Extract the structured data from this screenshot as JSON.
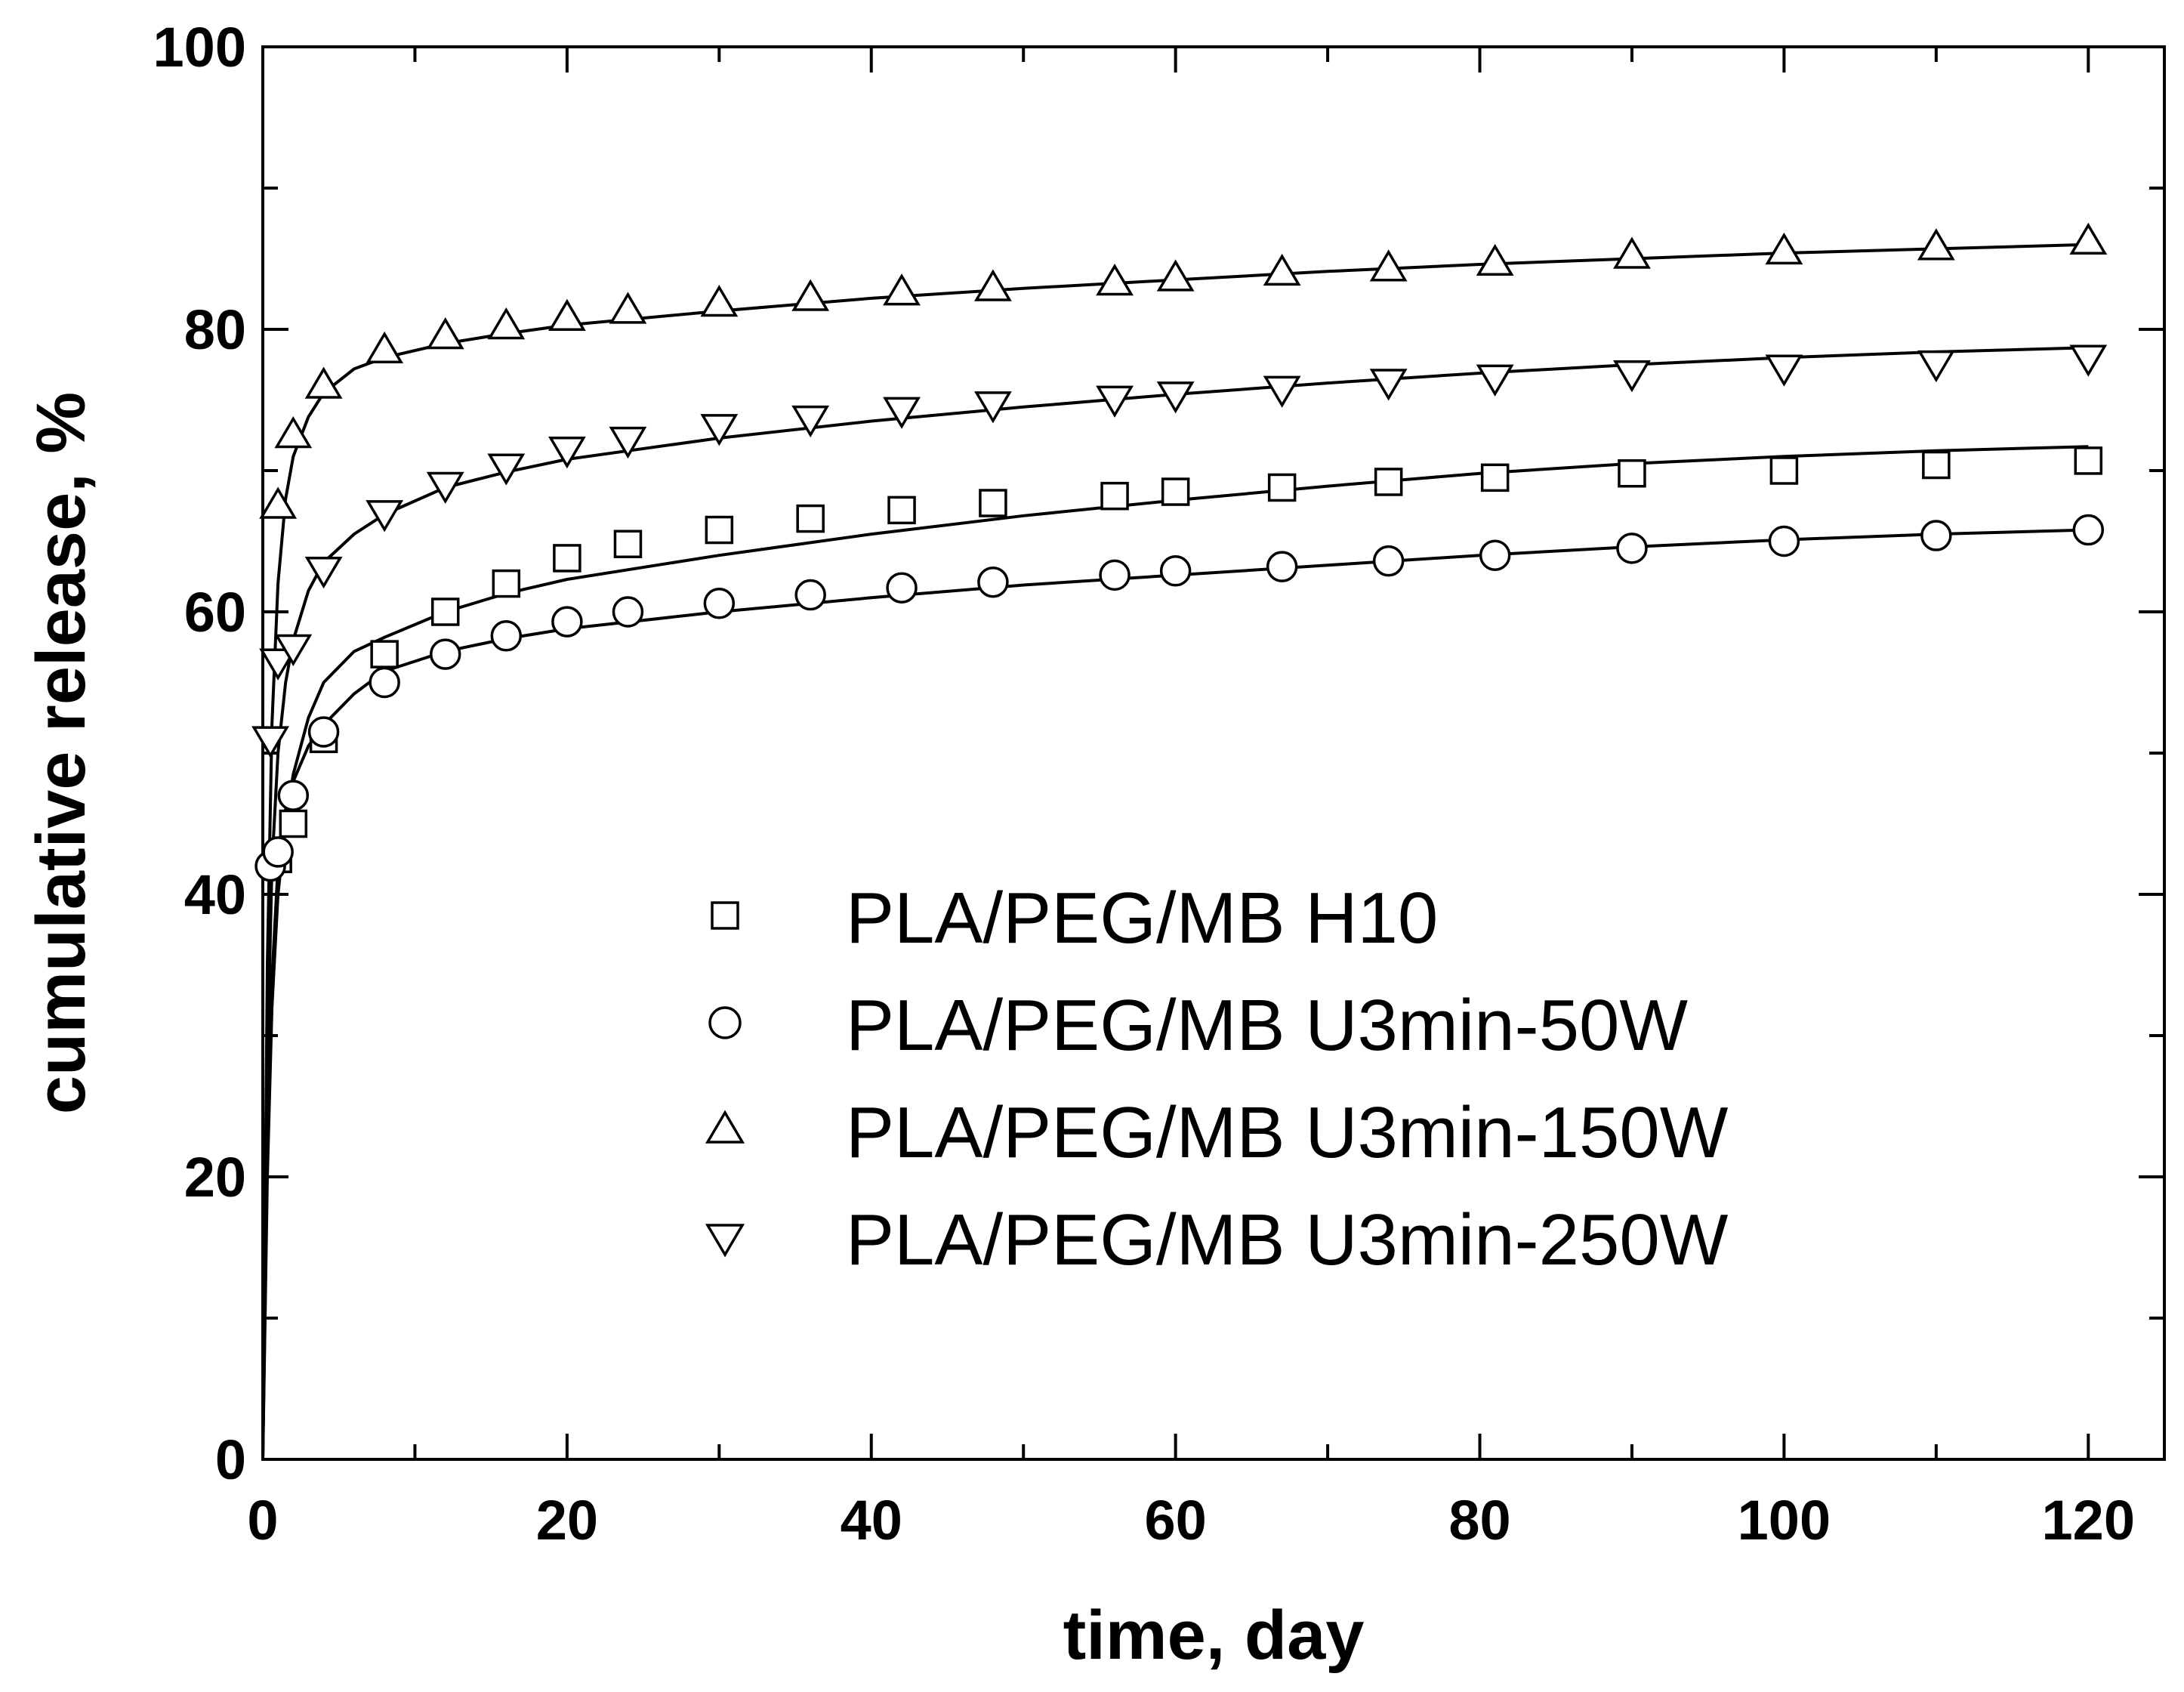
{
  "chart_data": {
    "type": "scatter",
    "title": "",
    "xlabel": "time, day",
    "ylabel": "cumulative release, %",
    "xlim": [
      0,
      125
    ],
    "ylim": [
      0,
      100
    ],
    "xticks": [
      0,
      20,
      40,
      60,
      80,
      100,
      120
    ],
    "yticks": [
      0,
      20,
      40,
      60,
      80,
      100
    ],
    "grid": false,
    "legend_position": "center",
    "series": [
      {
        "name": "PLA/PEG/MB H10",
        "marker": "square",
        "x": [
          1,
          2,
          4,
          8,
          12,
          16,
          20,
          24,
          30,
          36,
          42,
          48,
          56,
          60,
          67,
          74,
          81,
          90,
          100,
          110,
          120
        ],
        "y": [
          42.5,
          45,
          51,
          57,
          60,
          62,
          63.8,
          64.8,
          65.8,
          66.6,
          67.2,
          67.7,
          68.2,
          68.5,
          68.8,
          69.2,
          69.5,
          69.8,
          70,
          70.4,
          70.7
        ],
        "fit_x": [
          0,
          0.3,
          0.6,
          1,
          1.5,
          2,
          3,
          4,
          6,
          8,
          12,
          16,
          20,
          30,
          40,
          50,
          60,
          70,
          80,
          90,
          100,
          110,
          120
        ],
        "fit_y": [
          0,
          20,
          32,
          40,
          45,
          48.5,
          52.5,
          55,
          57.2,
          58.2,
          60,
          61.3,
          62.3,
          64,
          65.5,
          66.8,
          67.9,
          68.9,
          69.8,
          70.5,
          71,
          71.4,
          71.7
        ]
      },
      {
        "name": "PLA/PEG/MB U3min-50W",
        "marker": "circle",
        "x": [
          0.5,
          1,
          2,
          4,
          8,
          12,
          16,
          20,
          24,
          30,
          36,
          42,
          48,
          56,
          60,
          67,
          74,
          81,
          90,
          100,
          110,
          120
        ],
        "y": [
          42,
          43,
          47,
          51.5,
          55,
          57,
          58.3,
          59.3,
          60,
          60.6,
          61.2,
          61.7,
          62.1,
          62.6,
          62.9,
          63.2,
          63.6,
          64,
          64.5,
          65,
          65.4,
          65.8
        ],
        "fit_x": [
          0,
          0.3,
          0.6,
          1,
          1.5,
          2,
          3,
          4,
          6,
          8,
          12,
          16,
          20,
          30,
          40,
          50,
          60,
          70,
          80,
          90,
          100,
          110,
          120
        ],
        "fit_y": [
          0,
          22,
          34,
          42,
          46,
          48,
          50.5,
          52,
          54.2,
          55.8,
          57.2,
          58.1,
          58.8,
          60,
          61,
          61.9,
          62.6,
          63.3,
          64,
          64.6,
          65.1,
          65.5,
          65.8
        ]
      },
      {
        "name": "PLA/PEG/MB U3min-150W",
        "marker": "triangle-up",
        "x": [
          1,
          2,
          4,
          8,
          12,
          16,
          20,
          24,
          30,
          36,
          42,
          48,
          56,
          60,
          67,
          74,
          81,
          90,
          100,
          110,
          120
        ],
        "y": [
          67.5,
          72.5,
          76,
          78.5,
          79.5,
          80.2,
          80.8,
          81.3,
          81.8,
          82.2,
          82.6,
          82.9,
          83.3,
          83.6,
          84,
          84.3,
          84.7,
          85.2,
          85.5,
          85.8,
          86.2
        ],
        "fit_x": [
          0,
          0.3,
          0.6,
          1,
          1.5,
          2,
          3,
          4,
          6,
          8,
          12,
          16,
          20,
          30,
          40,
          50,
          60,
          70,
          80,
          90,
          100,
          110,
          120
        ],
        "fit_y": [
          0,
          35,
          52,
          62,
          68,
          71,
          73.8,
          75.5,
          77.2,
          78,
          79,
          79.7,
          80.3,
          81.3,
          82.2,
          82.9,
          83.5,
          84.1,
          84.6,
          85,
          85.4,
          85.7,
          86
        ]
      },
      {
        "name": "PLA/PEG/MB U3min-250W",
        "marker": "triangle-down",
        "x": [
          0.5,
          1,
          2,
          4,
          8,
          12,
          16,
          20,
          24,
          30,
          36,
          42,
          48,
          56,
          60,
          67,
          74,
          81,
          90,
          100,
          110,
          120
        ],
        "y": [
          51,
          56.5,
          57.5,
          63,
          67,
          69,
          70.3,
          71.5,
          72.2,
          73.1,
          73.7,
          74.3,
          74.7,
          75.1,
          75.4,
          75.8,
          76.3,
          76.6,
          76.9,
          77.3,
          77.6,
          78
        ],
        "fit_x": [
          0,
          0.3,
          0.6,
          1,
          1.5,
          2,
          3,
          4,
          6,
          8,
          12,
          16,
          20,
          30,
          40,
          50,
          60,
          70,
          80,
          90,
          100,
          110,
          120
        ],
        "fit_y": [
          0,
          28,
          42,
          50,
          55,
          58,
          61.5,
          63.5,
          65.5,
          66.9,
          68.8,
          69.9,
          70.8,
          72.3,
          73.5,
          74.5,
          75.4,
          76.2,
          76.9,
          77.5,
          78,
          78.4,
          78.7
        ]
      }
    ]
  }
}
